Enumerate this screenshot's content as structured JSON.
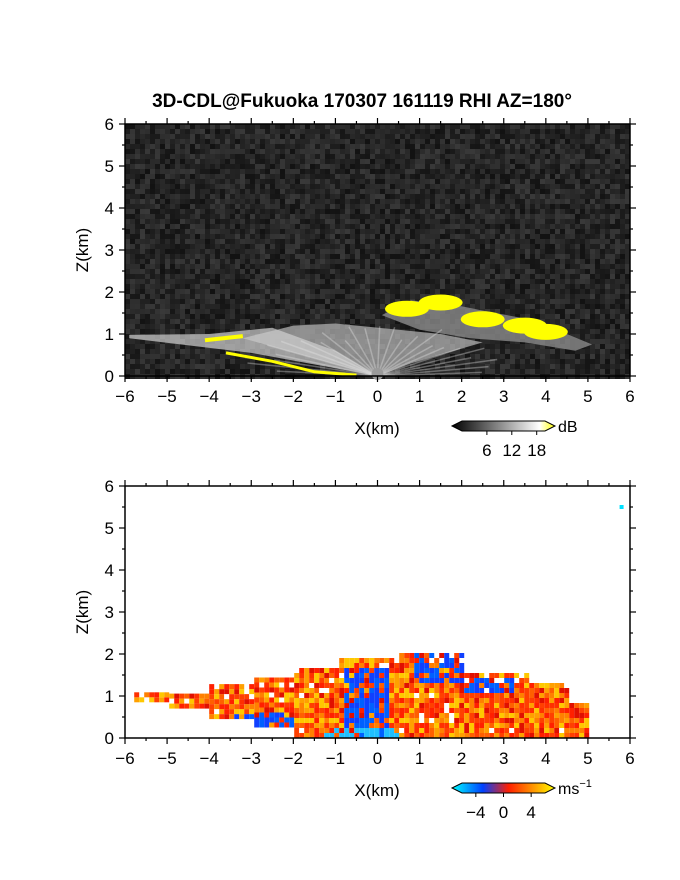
{
  "chart_data": [
    {
      "type": "heatmap",
      "title": "3D-CDL@Fukuoka 170307 161119 RHI AZ=180°",
      "xlabel": "X(km)",
      "ylabel": "Z(km)",
      "xlim": [
        -6,
        6
      ],
      "ylim": [
        0,
        6
      ],
      "xticks": [
        "−6",
        "−5",
        "−4",
        "−3",
        "−2",
        "−1",
        "0",
        "1",
        "2",
        "3",
        "4",
        "5",
        "6"
      ],
      "yticks": [
        "0",
        "1",
        "2",
        "3",
        "4",
        "5",
        "6"
      ],
      "field": "SNR",
      "colorbar": {
        "unit": "dB",
        "ticks": [
          "6",
          "12",
          "18"
        ],
        "tick_values": [
          6,
          12,
          18
        ],
        "range": [
          0,
          20
        ],
        "colors": [
          "#000000",
          "#ffffff",
          "#ffff00"
        ]
      },
      "features": {
        "background": "noise",
        "cloud_base_km": [
          [
            0.7,
            1.6
          ],
          [
            1.5,
            1.75
          ],
          [
            2.5,
            1.35
          ],
          [
            3.5,
            1.2
          ],
          [
            4.0,
            1.05
          ]
        ]
      }
    },
    {
      "type": "heatmap",
      "xlabel": "X(km)",
      "ylabel": "Z(km)",
      "xlim": [
        -6,
        6
      ],
      "ylim": [
        0,
        6
      ],
      "xticks": [
        "−6",
        "−5",
        "−4",
        "−3",
        "−2",
        "−1",
        "0",
        "1",
        "2",
        "3",
        "4",
        "5",
        "6"
      ],
      "yticks": [
        "0",
        "1",
        "2",
        "3",
        "4",
        "5",
        "6"
      ],
      "field": "Doppler velocity",
      "colorbar": {
        "unit": "ms",
        "unit_superscript": "−1",
        "ticks": [
          "−4",
          "0",
          "4"
        ],
        "tick_values": [
          -4,
          0,
          4
        ],
        "range": [
          -6,
          6
        ],
        "colors": [
          "#00ffff",
          "#0040ff",
          "#ff2000",
          "#ffff00"
        ]
      }
    }
  ]
}
